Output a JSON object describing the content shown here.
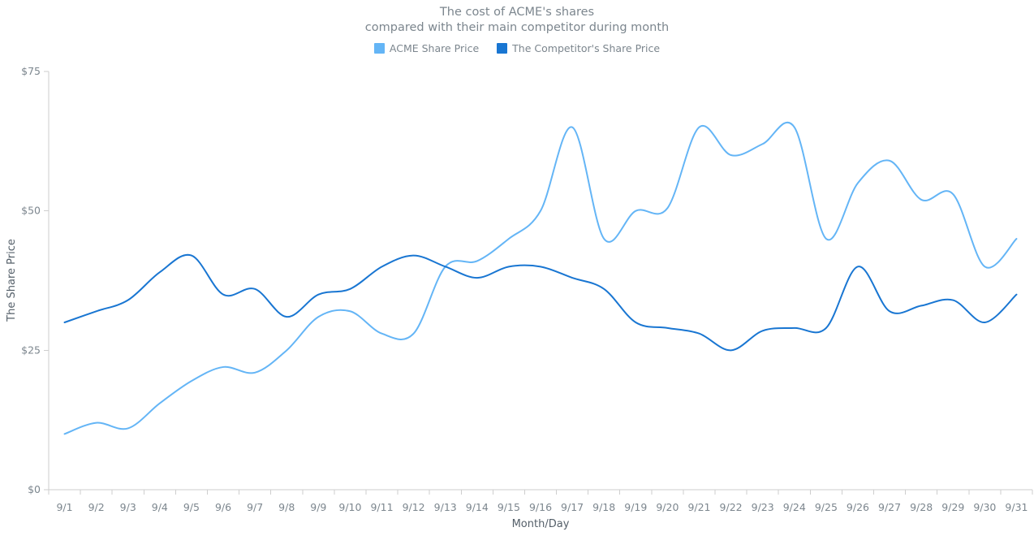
{
  "title": {
    "line1": "The cost of ACME's shares",
    "line2": "compared with their main competitor during month"
  },
  "legend": [
    {
      "label": "ACME Share Price",
      "color": "#64b5f6"
    },
    {
      "label": "The Competitor's Share Price",
      "color": "#1976d2"
    }
  ],
  "chart_data": {
    "type": "line",
    "interpolation": "spline",
    "title": "The cost of ACME's shares compared with their main competitor during month",
    "xlabel": "Month/Day",
    "ylabel": "The Share Price",
    "ylim": [
      0,
      75
    ],
    "yticks": [
      0,
      25,
      50,
      75
    ],
    "ytick_labels": [
      "$0",
      "$25",
      "$50",
      "$75"
    ],
    "grid": false,
    "legend_position": "top",
    "categories": [
      "9/1",
      "9/2",
      "9/3",
      "9/4",
      "9/5",
      "9/6",
      "9/7",
      "9/8",
      "9/9",
      "9/10",
      "9/11",
      "9/12",
      "9/13",
      "9/14",
      "9/15",
      "9/16",
      "9/17",
      "9/18",
      "9/19",
      "9/20",
      "9/21",
      "9/22",
      "9/23",
      "9/24",
      "9/25",
      "9/26",
      "9/27",
      "9/28",
      "9/29",
      "9/30",
      "9/31"
    ],
    "series": [
      {
        "name": "ACME Share Price",
        "color": "#64b5f6",
        "values": [
          10,
          12,
          11,
          15.5,
          19.5,
          22,
          21,
          25,
          31,
          32,
          28,
          28,
          40,
          41,
          45,
          50,
          65,
          45,
          50,
          50.5,
          65,
          60,
          62,
          65,
          45,
          55,
          59,
          52,
          53,
          40,
          45
        ]
      },
      {
        "name": "The Competitor's Share Price",
        "color": "#1976d2",
        "values": [
          30,
          32,
          34,
          39,
          42,
          35,
          36,
          31,
          35,
          36,
          40,
          42,
          40,
          38,
          40,
          40,
          38,
          36,
          30,
          29,
          28,
          25,
          28.5,
          29,
          29,
          40,
          32,
          33,
          34,
          30,
          35
        ]
      }
    ]
  },
  "colors": {
    "axis_line": "#cecece",
    "tick": "#cecece",
    "axis_text": "#7c868e",
    "axis_title_text": "#545f69",
    "background": "#ffffff"
  }
}
